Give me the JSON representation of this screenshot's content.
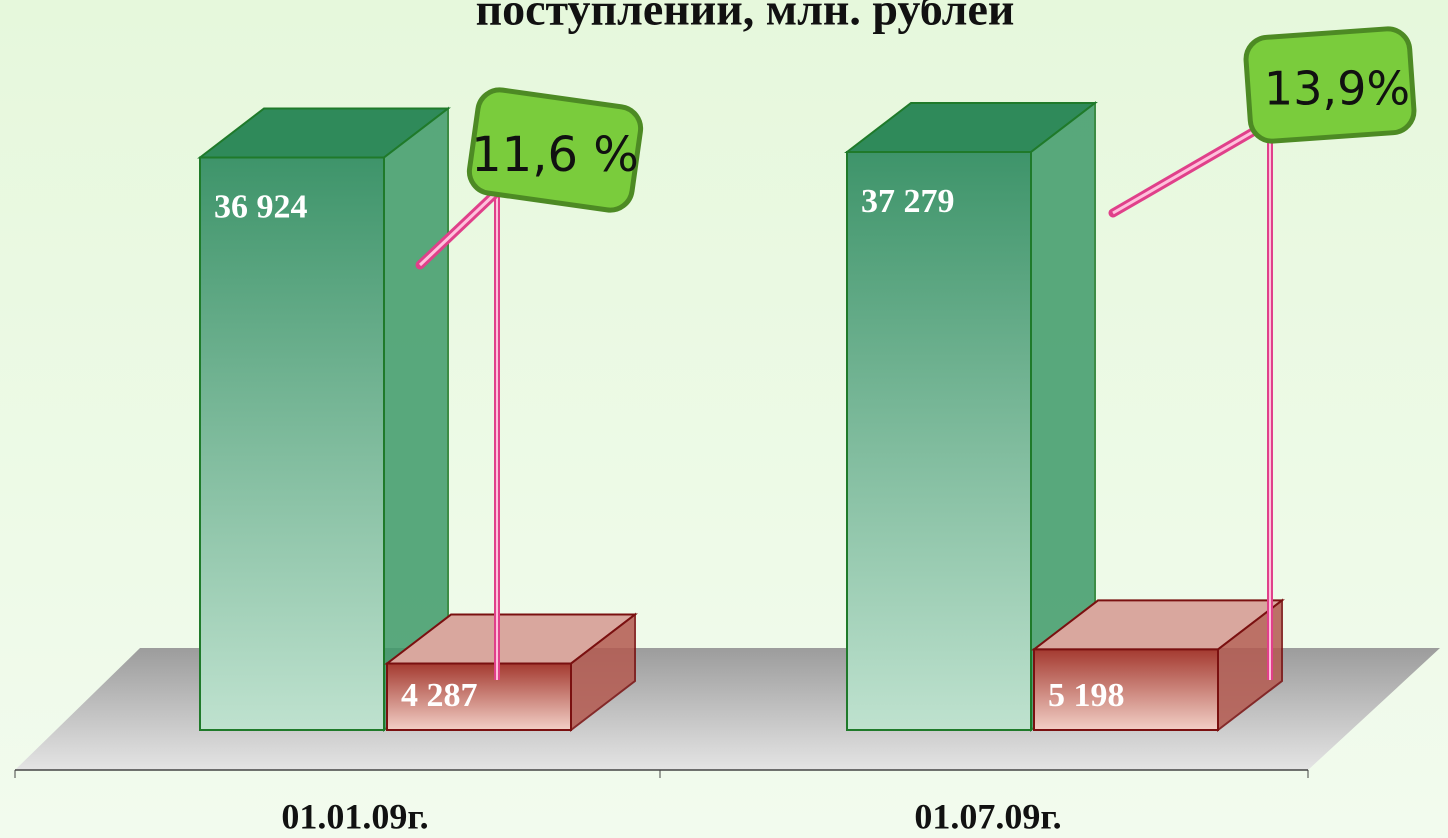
{
  "chart_data": {
    "type": "bar3d",
    "title": "поступлений, млн. рублей",
    "categories": [
      "01.01.09г.",
      "01.07.09г."
    ],
    "series": [
      {
        "color": "#3e946a",
        "values": [
          36924,
          37279
        ],
        "value_labels": [
          "36 924",
          "37 279"
        ]
      },
      {
        "color": "#a43a30",
        "values": [
          4287,
          5198
        ],
        "value_labels": [
          "4 287",
          "5 198"
        ]
      }
    ],
    "annotations": [
      "11,6 %",
      "13,9%"
    ]
  }
}
